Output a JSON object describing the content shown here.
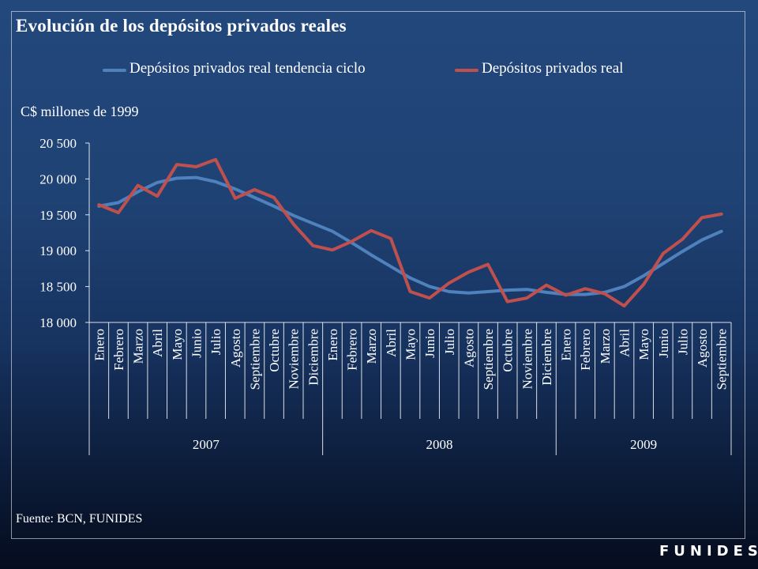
{
  "title": "Evolución de los depósitos privados reales",
  "y_unit": "C$ millones de 1999",
  "source": "Fuente: BCN, FUNIDES",
  "brand": "FUNIDES",
  "colors": {
    "trend": "#4f81bd",
    "real": "#c0504d",
    "background_top": "#23487c",
    "background_bottom": "#050c1e"
  },
  "chart_data": {
    "type": "line",
    "title": "Evolución de los depósitos privados reales",
    "ylabel": "C$ millones de 1999",
    "ylim": [
      18000,
      20500
    ],
    "yticks": [
      18000,
      18500,
      19000,
      19500,
      20000,
      20500
    ],
    "ytick_labels": [
      "18 000",
      "18 500",
      "19 000",
      "19 500",
      "20 000",
      "20 500"
    ],
    "grid": false,
    "legend_position": "top",
    "categories": [
      "Enero",
      "Febrero",
      "Marzo",
      "Abril",
      "Mayo",
      "Junio",
      "Julio",
      "Agosto",
      "Septiembre",
      "Octubre",
      "Noviembre",
      "Diciembre",
      "Enero",
      "Febrero",
      "Marzo",
      "Abril",
      "Mayo",
      "Junio",
      "Julio",
      "Agosto",
      "Septiembre",
      "Octubre",
      "Noviembre",
      "Diciembre",
      "Enero",
      "Febrero",
      "Marzo",
      "Abril",
      "Mayo",
      "Junio",
      "Julio",
      "Agosto",
      "Septiembre"
    ],
    "groups": [
      {
        "label": "2007",
        "count": 12
      },
      {
        "label": "2008",
        "count": 12
      },
      {
        "label": "2009",
        "count": 9
      }
    ],
    "series": [
      {
        "name": "Depósitos privados real tendencia ciclo",
        "color": "#4f81bd",
        "values": [
          19620,
          19670,
          19820,
          19950,
          20010,
          20020,
          19960,
          19860,
          19740,
          19620,
          19490,
          19380,
          19270,
          19110,
          18940,
          18780,
          18620,
          18500,
          18430,
          18410,
          18430,
          18450,
          18460,
          18420,
          18390,
          18390,
          18420,
          18500,
          18650,
          18820,
          18990,
          19150,
          19270
        ]
      },
      {
        "name": "Depósitos privados real",
        "color": "#c0504d",
        "values": [
          19640,
          19530,
          19910,
          19760,
          20200,
          20170,
          20270,
          19730,
          19850,
          19740,
          19370,
          19070,
          19010,
          19130,
          19280,
          19170,
          18430,
          18340,
          18550,
          18700,
          18810,
          18290,
          18340,
          18520,
          18380,
          18470,
          18400,
          18230,
          18530,
          18960,
          19160,
          19460,
          19510
        ]
      }
    ]
  }
}
